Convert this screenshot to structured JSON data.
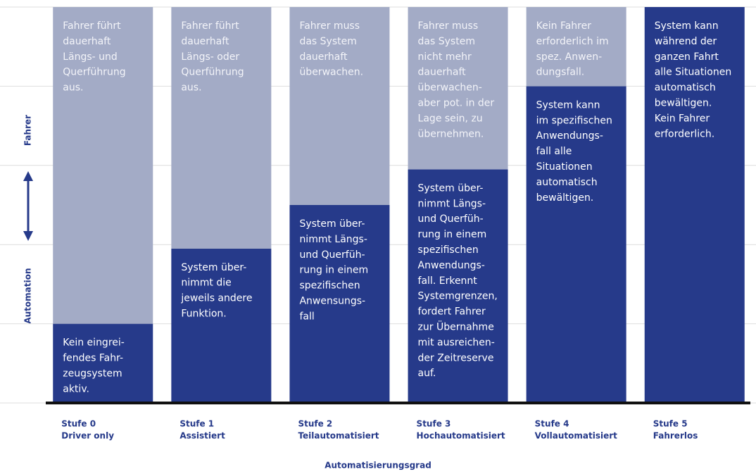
{
  "chart_data": {
    "type": "bar",
    "stacked": true,
    "x_label": "Automatisierungsgrad",
    "categories": [
      "Stufe 0",
      "Stufe 1",
      "Stufe 2",
      "Stufe 3",
      "Stufe 4",
      "Stufe 5"
    ],
    "category_names": [
      "Driver only",
      "Assistiert",
      "Teilautomatisiert",
      "Hochautomatisiert",
      "Vollautomatisiert",
      "Fahrerlos"
    ],
    "series": [
      {
        "name": "Automation",
        "color": "#263a8a",
        "text_color": "#ffffff",
        "values": [
          20,
          39,
          50,
          59,
          80,
          100
        ],
        "texts": [
          [
            "Kein eingrei-",
            "fendes Fahr-",
            "zeugsystem",
            "aktiv."
          ],
          [
            "System über-",
            "nimmt die",
            "jeweils andere",
            "Funktion."
          ],
          [
            "System über-",
            "nimmt Längs-",
            "und Querfüh-",
            "rung in einem",
            "spezifischen",
            "Anwensungs-",
            "fall"
          ],
          [
            "System über-",
            "nimmt Längs-",
            "und Querfüh-",
            "rung in einem",
            "spezifischen",
            "Anwendungs-",
            "fall. Erkennt",
            "Systemgrenzen,",
            "fordert Fahrer",
            "zur Übernahme",
            "mit ausreichen-",
            "der Zeitreserve",
            "auf."
          ],
          [
            "System kann",
            "im spezifischen",
            "Anwendungs-",
            "fall alle",
            "Situationen",
            "automatisch",
            "bewältigen."
          ],
          [
            "System kann",
            "während der",
            "ganzen Fahrt",
            "alle Situationen",
            "automatisch",
            "bewältigen.",
            "Kein Fahrer",
            "erforderlich."
          ]
        ]
      },
      {
        "name": "Fahrer",
        "color": "#a3abc6",
        "text_color": "#f3f4f9",
        "values": [
          80,
          61,
          50,
          41,
          20,
          0
        ],
        "texts": [
          [
            "Fahrer führt",
            "dauerhaft",
            "Längs- und",
            "Querführung",
            "aus."
          ],
          [
            "Fahrer führt",
            "dauerhaft",
            "Längs- oder",
            "Querführung",
            "aus."
          ],
          [
            "Fahrer muss",
            "das System",
            "dauerhaft",
            "überwachen."
          ],
          [
            "Fahrer muss",
            "das System",
            "nicht mehr",
            "dauerhaft",
            "überwachen-",
            "aber pot. in der",
            "Lage sein, zu",
            "übernehmen."
          ],
          [
            "Kein Fahrer",
            "erforderlich im",
            "spez. Anwen-",
            "dungsfall."
          ],
          []
        ]
      }
    ],
    "ylim": [
      0,
      100
    ],
    "yticks": [
      0,
      20,
      40,
      60,
      80,
      100
    ],
    "grid": true
  }
}
